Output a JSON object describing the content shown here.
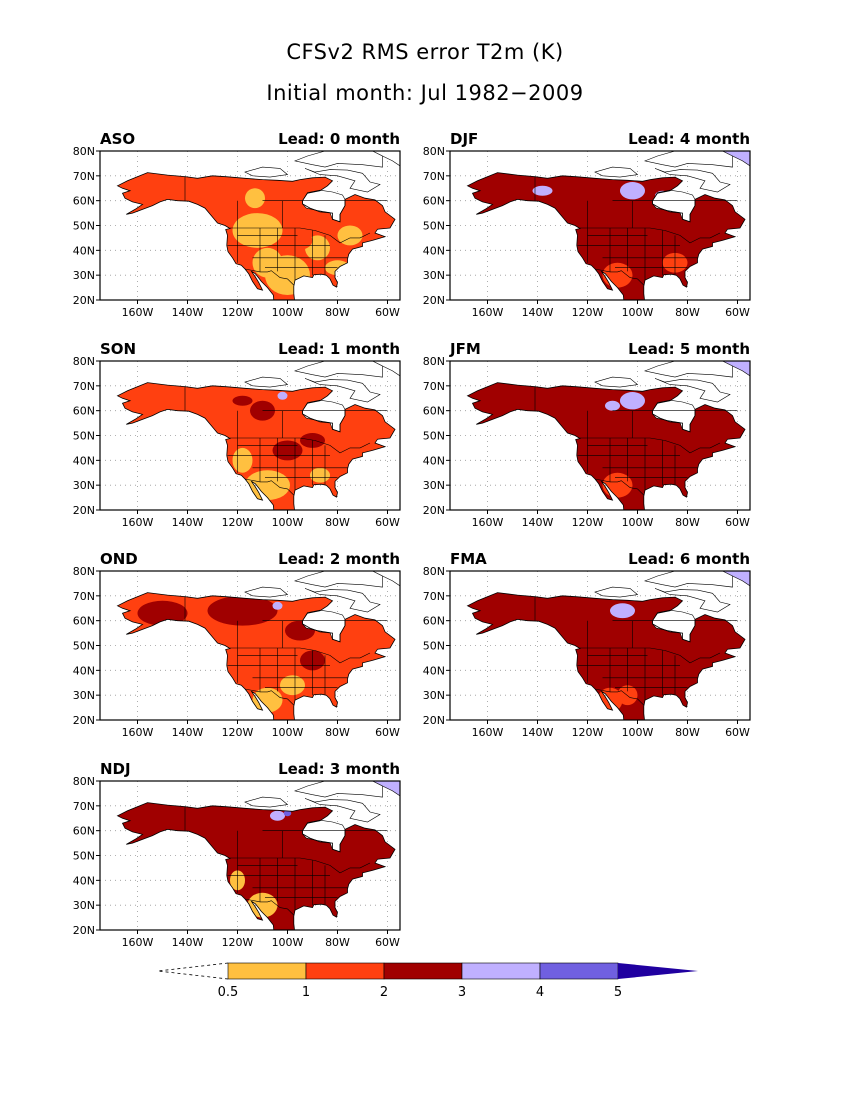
{
  "figure": {
    "title": "CFSv2 RMS error T2m (K)",
    "subtitle": "Initial month: Jul 1982−2009"
  },
  "axes": {
    "lon_ticks": [
      "160W",
      "140W",
      "120W",
      "100W",
      "80W",
      "60W"
    ],
    "lat_ticks": [
      "80N",
      "70N",
      "60N",
      "50N",
      "40N",
      "30N",
      "20N"
    ],
    "lon_range": [
      -175,
      -55
    ],
    "lat_range": [
      20,
      80
    ],
    "grid": "dotted"
  },
  "panels": [
    {
      "season": "ASO",
      "lead": "Lead: 0 month",
      "level": 0
    },
    {
      "season": "DJF",
      "lead": "Lead: 4 month",
      "level": 4
    },
    {
      "season": "SON",
      "lead": "Lead: 1 month",
      "level": 1
    },
    {
      "season": "JFM",
      "lead": "Lead: 5 month",
      "level": 5
    },
    {
      "season": "OND",
      "lead": "Lead: 2 month",
      "level": 2
    },
    {
      "season": "FMA",
      "lead": "Lead: 6 month",
      "level": 6
    },
    {
      "season": "NDJ",
      "lead": "Lead: 3 month",
      "level": 3
    }
  ],
  "colorbar": {
    "labels": [
      "0.5",
      "1",
      "2",
      "3",
      "4",
      "5"
    ],
    "colors": [
      "#ffc040",
      "#ff4010",
      "#a00000",
      "#c0b0ff",
      "#7060e0",
      "#2000a0"
    ]
  }
}
